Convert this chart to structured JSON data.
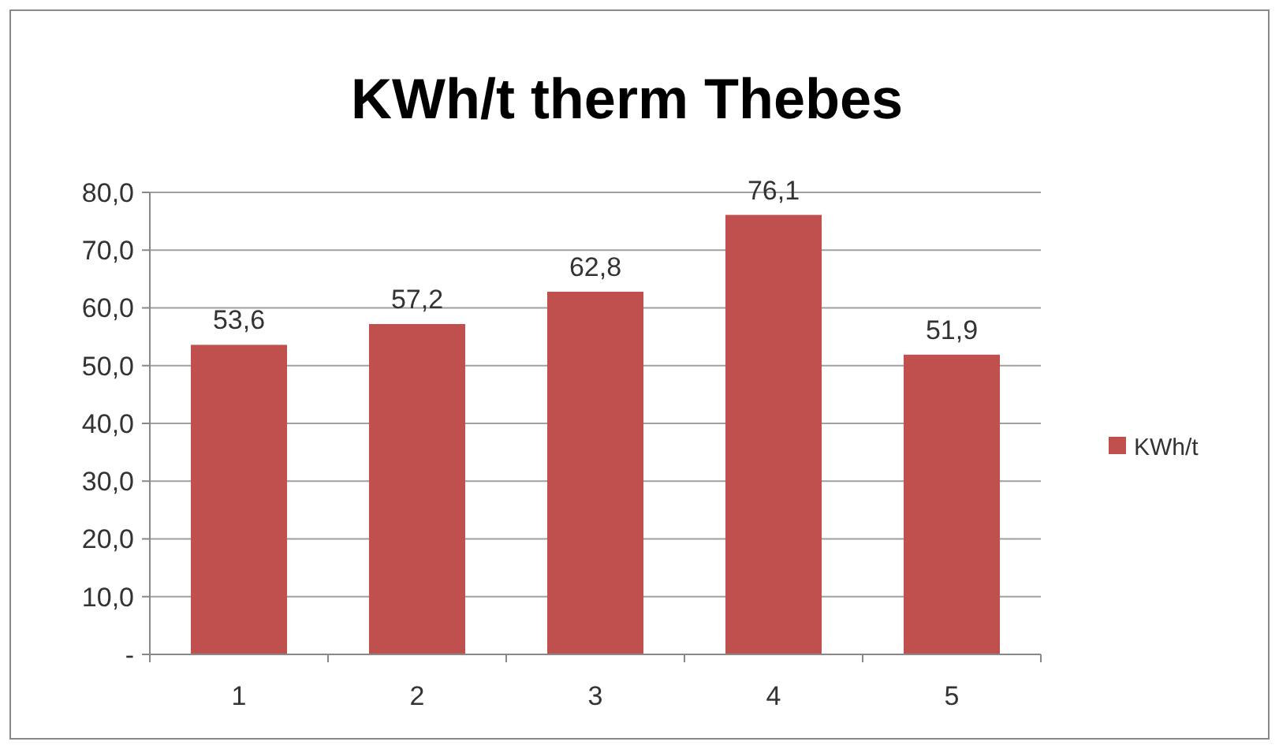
{
  "chart_data": {
    "type": "bar",
    "title": "KWh/t therm Thebes",
    "categories": [
      "1",
      "2",
      "3",
      "4",
      "5"
    ],
    "series": [
      {
        "name": "KWh/t",
        "color": "#c0504d",
        "values": [
          53.6,
          57.2,
          62.8,
          76.1,
          51.9
        ],
        "value_labels": [
          "53,6",
          "57,2",
          "62,8",
          "76,1",
          "51,9"
        ]
      }
    ],
    "ylim": [
      0,
      80
    ],
    "yticks": [
      {
        "value": 0,
        "label": "-"
      },
      {
        "value": 10,
        "label": "10,0"
      },
      {
        "value": 20,
        "label": "20,0"
      },
      {
        "value": 30,
        "label": "30,0"
      },
      {
        "value": 40,
        "label": "40,0"
      },
      {
        "value": 50,
        "label": "50,0"
      },
      {
        "value": 60,
        "label": "60,0"
      },
      {
        "value": 70,
        "label": "70,0"
      },
      {
        "value": 80,
        "label": "80,0"
      }
    ],
    "grid": "y",
    "legend": "right"
  }
}
